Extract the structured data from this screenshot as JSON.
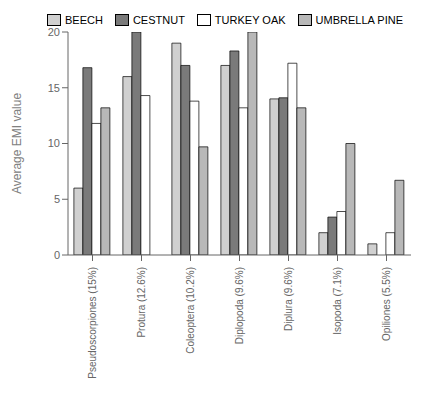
{
  "chart_data": {
    "type": "bar",
    "categories": [
      "Pseudoscorpiones (15%)",
      "Protura (12.6%)",
      "Coleoptera (10.2%)",
      "Diplopoda (9.6%)",
      "Diplura (9.6%)",
      "Isopoda (7.1%)",
      "Opiliones (5.5%)"
    ],
    "series": [
      {
        "name": "BEECH",
        "color": "#d0d0d0",
        "values": [
          6,
          16,
          19,
          17,
          14,
          2,
          1
        ]
      },
      {
        "name": "CESTNUT",
        "color": "#7a7a7a",
        "values": [
          16.8,
          20,
          17,
          18.3,
          14.1,
          3.4,
          0
        ]
      },
      {
        "name": "TURKEY OAK",
        "color": "#ffffff",
        "values": [
          11.8,
          14.3,
          13.8,
          13.2,
          17.2,
          3.9,
          2
        ]
      },
      {
        "name": "UMBRELLA PINE",
        "color": "#b8b8b8",
        "values": [
          13.2,
          0,
          9.7,
          20,
          13.2,
          10,
          6.7
        ]
      }
    ],
    "ylabel": "Average EMI value",
    "ylim": [
      0,
      20
    ],
    "yticks": [
      0,
      5,
      10,
      15,
      20
    ],
    "legend": "upper right",
    "grid": false
  }
}
